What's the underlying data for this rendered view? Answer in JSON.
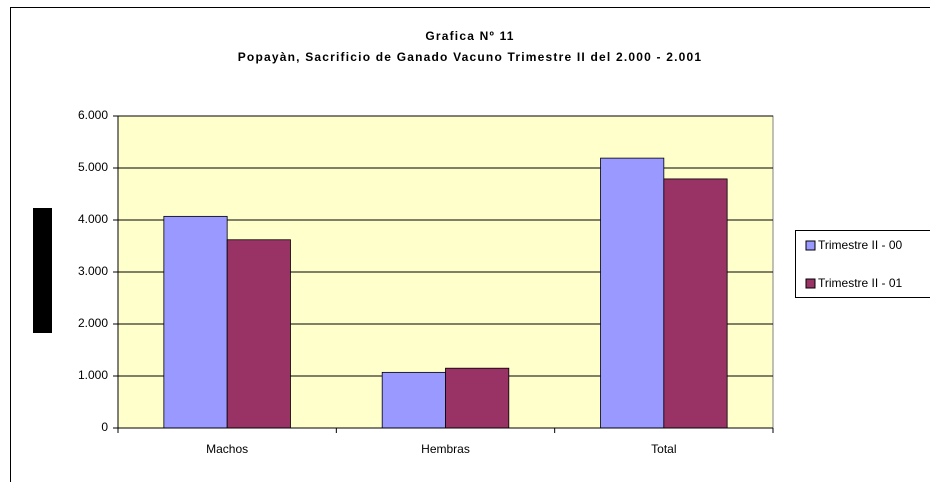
{
  "chart_data": {
    "type": "bar",
    "title": "Grafica Nº 11",
    "subtitle": "Popayàn, Sacrificio de Ganado Vacuno Trimestre II del 2.000 - 2.001",
    "categories": [
      "Machos",
      "Hembras",
      "Total"
    ],
    "series": [
      {
        "name": "Trimestre II - 00",
        "color": "#9999ff",
        "values": [
          4070,
          1070,
          5190
        ]
      },
      {
        "name": "Trimestre II - 01",
        "color": "#993366",
        "values": [
          3620,
          1150,
          4790
        ]
      }
    ],
    "ylim": [
      0,
      6000
    ],
    "yticks": [
      0,
      {
        "value": 1000,
        "label": "1.000"
      },
      {
        "value": 2000,
        "label": "2.000"
      },
      {
        "value": 3000,
        "label": "3.000"
      },
      {
        "value": 4000,
        "label": "4.000"
      },
      {
        "value": 5000,
        "label": "5.000"
      },
      {
        "value": 6000,
        "label": "6.000"
      }
    ],
    "grid": true,
    "legend": "right",
    "plot_background": "#ffffcc"
  }
}
